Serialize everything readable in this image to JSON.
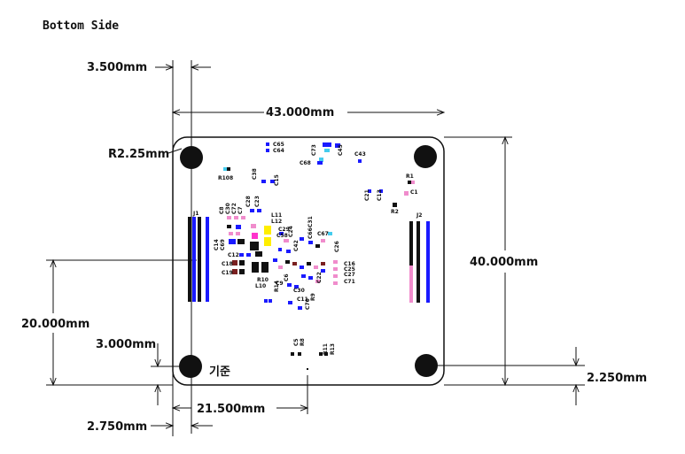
{
  "title": "Bottom Side",
  "dimensions": {
    "left_offset": "3.500mm",
    "board_width": "43.000mm",
    "corner_radius": "R2.25mm",
    "board_height": "40.000mm",
    "connector_height": "20.000mm",
    "hole_offset_y": "3.000mm",
    "hole_offset_bottom": "2.250mm",
    "center_x": "21.500mm",
    "hole_offset_x": "2.750mm"
  },
  "reference_label": "기준",
  "connectors": {
    "j1": "J1",
    "j2": "J2"
  },
  "component_labels": [
    "C65",
    "C64",
    "C73",
    "C45",
    "C68",
    "C43",
    "R108",
    "C38",
    "C15",
    "R1",
    "C1",
    "R2",
    "C21",
    "C13",
    "C8",
    "C30",
    "C72",
    "C7",
    "C28",
    "C23",
    "L11",
    "L12",
    "C14",
    "C69",
    "C29",
    "C58",
    "C24",
    "C66",
    "C31",
    "C67",
    "C42",
    "C12",
    "C18",
    "C19",
    "R10",
    "L10",
    "C9",
    "C6",
    "C26",
    "C16",
    "C25",
    "C27",
    "C71",
    "C22",
    "R14",
    "C30",
    "C11",
    "C70",
    "R9",
    "C5",
    "R8",
    "R11",
    "R13",
    "R12"
  ],
  "colors": {
    "outline": "#111111",
    "pad_blue": "#1a1aff",
    "pad_pink": "#f08ccc",
    "pad_yellow": "#ffee00",
    "pad_magenta": "#ff33cc",
    "pad_brown": "#7a2020",
    "pad_cyan": "#44ccee",
    "pad_black": "#111111"
  }
}
